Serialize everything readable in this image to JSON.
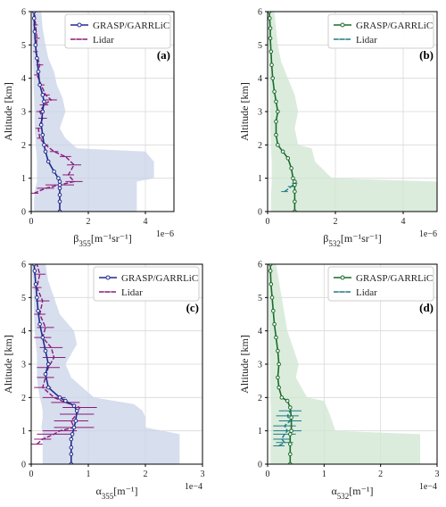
{
  "chart_data": [
    {
      "type": "line",
      "panel_label": "(a)",
      "xlabel": "β355[m⁻¹sr⁻¹]",
      "ylabel": "Altitude [km]",
      "xlim": [
        0,
        5
      ],
      "ylim": [
        0,
        6
      ],
      "xticks": [
        "0",
        "2",
        "4"
      ],
      "yticks": [
        "0",
        "1",
        "2",
        "3",
        "4",
        "5",
        "6"
      ],
      "x_exponent": "1e−6",
      "grid": true,
      "legend_position": "top-right",
      "colors": {
        "model": "#1f2c8c",
        "lidar": "#8b1a7a",
        "band": "#c9d3e8"
      },
      "series": [
        {
          "name": "GRASP/GARRLiC",
          "style": "solid-circles",
          "x": [
            1.0,
            1.0,
            1.0,
            1.0,
            1.0,
            1.0,
            0.95,
            0.8,
            0.6,
            0.5,
            0.45,
            0.4,
            0.35,
            0.4,
            0.45,
            0.4,
            0.3,
            0.25,
            0.2,
            0.15,
            0.12,
            0.1,
            0.1
          ],
          "y": [
            0.0,
            0.3,
            0.5,
            0.7,
            0.8,
            0.9,
            1.0,
            1.2,
            1.5,
            1.8,
            2.0,
            2.3,
            2.6,
            3.0,
            3.3,
            3.5,
            3.8,
            4.2,
            4.6,
            5.0,
            5.4,
            5.8,
            6.0
          ]
        },
        {
          "name": "Lidar",
          "style": "dashed-errorbars",
          "x": [
            0.1,
            0.5,
            1.0,
            1.5,
            1.3,
            1.5,
            1.2,
            0.8,
            0.5,
            0.3,
            0.25,
            0.4,
            0.3,
            0.45,
            0.7,
            0.5,
            0.35,
            0.2,
            0.3,
            0.15,
            0.2,
            0.15,
            0.12
          ],
          "y": [
            0.55,
            0.7,
            0.8,
            0.9,
            1.1,
            1.4,
            1.65,
            1.8,
            2.0,
            2.2,
            2.5,
            2.8,
            3.0,
            3.2,
            3.35,
            3.5,
            3.8,
            4.1,
            4.4,
            4.8,
            5.2,
            5.6,
            6.0
          ],
          "xerr": [
            0.15,
            0.3,
            0.5,
            0.3,
            0.2,
            0.25,
            0.2,
            0.15,
            0.1,
            0.1,
            0.1,
            0.15,
            0.12,
            0.15,
            0.2,
            0.15,
            0.12,
            0.1,
            0.12,
            0.08,
            0.1,
            0.08,
            0.06
          ]
        },
        {
          "name": "uncertainty band",
          "role": "band",
          "y": [
            0.0,
            0.3,
            0.6,
            0.9,
            1.0,
            1.2,
            1.5,
            1.8,
            1.9,
            2.2,
            2.5,
            3.0,
            3.4,
            3.8,
            4.2,
            4.6,
            5.0,
            5.5,
            6.0
          ],
          "x_low": [
            0.1,
            0.1,
            0.12,
            0.2,
            0.2,
            0.2,
            0.2,
            0.18,
            0.16,
            0.15,
            0.12,
            0.12,
            0.1,
            0.08,
            0.08,
            0.06,
            0.05,
            0.04,
            0.04
          ],
          "x_high": [
            3.7,
            3.7,
            3.7,
            3.7,
            4.3,
            4.3,
            4.3,
            4.0,
            1.6,
            1.2,
            1.0,
            1.2,
            1.1,
            0.9,
            0.8,
            0.6,
            0.5,
            0.4,
            0.35
          ]
        }
      ]
    },
    {
      "type": "line",
      "panel_label": "(b)",
      "xlabel": "β532[m⁻¹sr⁻¹]",
      "ylabel": "Altitude [km]",
      "xlim": [
        0,
        5
      ],
      "ylim": [
        0,
        6
      ],
      "xticks": [
        "0",
        "2",
        "4"
      ],
      "yticks": [
        "0",
        "1",
        "2",
        "3",
        "4",
        "5",
        "6"
      ],
      "x_exponent": "1e−6",
      "grid": true,
      "legend_position": "top-right",
      "colors": {
        "model": "#1b6b2a",
        "lidar": "#1f7a86",
        "band": "#cfe6d2"
      },
      "series": [
        {
          "name": "GRASP/GARRLiC",
          "style": "solid-circles",
          "x": [
            0.8,
            0.8,
            0.8,
            0.8,
            0.8,
            0.75,
            0.7,
            0.6,
            0.45,
            0.3,
            0.25,
            0.25,
            0.3,
            0.25,
            0.2,
            0.15,
            0.12,
            0.1,
            0.08,
            0.08,
            0.06,
            0.05
          ],
          "y": [
            0.0,
            0.3,
            0.6,
            0.8,
            0.9,
            1.0,
            1.3,
            1.6,
            1.8,
            2.0,
            2.3,
            2.7,
            3.0,
            3.3,
            3.6,
            4.0,
            4.4,
            4.8,
            5.2,
            5.5,
            5.8,
            6.0
          ]
        },
        {
          "name": "Lidar",
          "style": "dashed-errorbars",
          "x": [
            0.5,
            0.7,
            0.8
          ],
          "y": [
            0.6,
            0.75,
            0.85
          ],
          "xerr": [
            0.1,
            0.1,
            0.08
          ]
        },
        {
          "name": "uncertainty band",
          "role": "band",
          "y": [
            0.0,
            0.5,
            0.9,
            1.0,
            1.5,
            1.9,
            2.0,
            2.5,
            3.0,
            3.5,
            4.0,
            4.5,
            5.0,
            5.5,
            6.0
          ],
          "x_low": [
            0.1,
            0.1,
            0.12,
            0.12,
            0.12,
            0.1,
            0.1,
            0.08,
            0.08,
            0.06,
            0.05,
            0.04,
            0.03,
            0.03,
            0.02
          ],
          "x_high": [
            5.0,
            5.0,
            5.0,
            1.9,
            1.4,
            1.3,
            0.9,
            0.8,
            0.9,
            0.8,
            0.6,
            0.4,
            0.3,
            0.25,
            0.2
          ]
        }
      ]
    },
    {
      "type": "line",
      "panel_label": "(c)",
      "xlabel": "α355[m⁻¹]",
      "ylabel": "Altitude [km]",
      "xlim": [
        0,
        3
      ],
      "ylim": [
        0,
        6
      ],
      "xticks": [
        "0",
        "1",
        "2",
        "3"
      ],
      "yticks": [
        "0",
        "1",
        "2",
        "3",
        "4",
        "5",
        "6"
      ],
      "x_exponent": "1e−4",
      "grid": true,
      "legend_position": "top-right",
      "colors": {
        "model": "#1f2c8c",
        "lidar": "#8b1a7a",
        "band": "#c9d3e8"
      },
      "series": [
        {
          "name": "GRASP/GARRLiC",
          "style": "solid-circles",
          "x": [
            0.7,
            0.7,
            0.7,
            0.7,
            0.72,
            0.75,
            0.78,
            0.8,
            0.75,
            0.6,
            0.5,
            0.3,
            0.25,
            0.3,
            0.25,
            0.2,
            0.15,
            0.12,
            0.1,
            0.08,
            0.06,
            0.05
          ],
          "y": [
            0.0,
            0.3,
            0.5,
            0.75,
            0.9,
            1.1,
            1.3,
            1.6,
            1.75,
            1.9,
            2.0,
            2.3,
            2.7,
            3.0,
            3.4,
            3.8,
            4.2,
            4.6,
            5.0,
            5.4,
            5.8,
            6.0
          ]
        },
        {
          "name": "Lidar",
          "style": "dashed-errorbars",
          "x": [
            0.1,
            0.2,
            0.4,
            0.5,
            0.75,
            0.7,
            0.8,
            0.85,
            0.6,
            0.4,
            0.2,
            0.25,
            0.3,
            0.4,
            0.35,
            0.2,
            0.25,
            0.15,
            0.2,
            0.1,
            0.15,
            0.1
          ],
          "y": [
            0.6,
            0.75,
            0.9,
            1.0,
            1.1,
            1.3,
            1.5,
            1.7,
            1.85,
            2.0,
            2.3,
            2.6,
            2.9,
            3.2,
            3.5,
            3.8,
            4.1,
            4.5,
            4.9,
            5.3,
            5.7,
            6.0
          ],
          "xerr": [
            0.1,
            0.15,
            0.3,
            0.3,
            0.35,
            0.3,
            0.3,
            0.3,
            0.25,
            0.2,
            0.15,
            0.15,
            0.2,
            0.2,
            0.2,
            0.15,
            0.15,
            0.1,
            0.12,
            0.08,
            0.1,
            0.08
          ]
        },
        {
          "name": "uncertainty band",
          "role": "band",
          "y": [
            0.0,
            0.5,
            0.9,
            1.1,
            1.4,
            1.6,
            1.8,
            2.0,
            2.3,
            2.6,
            3.0,
            3.3,
            3.6,
            4.0,
            4.5,
            5.0,
            5.5,
            6.0
          ],
          "x_low": [
            0.2,
            0.2,
            0.2,
            0.18,
            0.2,
            0.2,
            0.18,
            0.15,
            0.12,
            0.1,
            0.1,
            0.1,
            0.08,
            0.06,
            0.05,
            0.04,
            0.03,
            0.02
          ],
          "x_high": [
            2.6,
            2.6,
            2.6,
            2.0,
            2.0,
            1.95,
            1.8,
            1.1,
            0.9,
            0.7,
            0.6,
            0.7,
            0.8,
            0.75,
            0.5,
            0.4,
            0.3,
            0.25
          ]
        }
      ]
    },
    {
      "type": "line",
      "panel_label": "(d)",
      "xlabel": "α532[m⁻¹]",
      "ylabel": "Altitude [km]",
      "xlim": [
        0,
        3
      ],
      "ylim": [
        0,
        6
      ],
      "xticks": [
        "0",
        "1",
        "2",
        "3"
      ],
      "yticks": [
        "0",
        "1",
        "2",
        "3",
        "4",
        "5",
        "6"
      ],
      "x_exponent": "1e−4",
      "grid": true,
      "legend_position": "top-right",
      "colors": {
        "model": "#1b6b2a",
        "lidar": "#1f7a86",
        "band": "#cfe6d2"
      },
      "series": [
        {
          "name": "GRASP/GARRLiC",
          "style": "solid-circles",
          "x": [
            0.4,
            0.4,
            0.4,
            0.4,
            0.42,
            0.42,
            0.4,
            0.35,
            0.25,
            0.2,
            0.18,
            0.2,
            0.18,
            0.15,
            0.12,
            0.1,
            0.08,
            0.06,
            0.05,
            0.05
          ],
          "y": [
            0.0,
            0.3,
            0.6,
            0.9,
            1.0,
            1.4,
            1.7,
            1.9,
            2.0,
            2.3,
            2.6,
            3.0,
            3.4,
            3.8,
            4.2,
            4.6,
            5.0,
            5.4,
            5.8,
            6.0
          ]
        },
        {
          "name": "Lidar",
          "style": "dashed-errorbars",
          "x": [
            0.2,
            0.3,
            0.25,
            0.3,
            0.35,
            0.3,
            0.4,
            0.35,
            0.4
          ],
          "y": [
            0.55,
            0.65,
            0.75,
            0.9,
            1.0,
            1.15,
            1.3,
            1.45,
            1.6
          ],
          "xerr": [
            0.1,
            0.15,
            0.15,
            0.2,
            0.25,
            0.2,
            0.2,
            0.2,
            0.2
          ]
        },
        {
          "name": "uncertainty band",
          "role": "band",
          "y": [
            0.0,
            0.5,
            0.9,
            1.0,
            1.5,
            1.9,
            2.0,
            2.3,
            2.6,
            3.0,
            3.5,
            4.0,
            4.5,
            5.0,
            5.5,
            6.0
          ],
          "x_low": [
            0.05,
            0.05,
            0.06,
            0.06,
            0.06,
            0.05,
            0.05,
            0.05,
            0.04,
            0.04,
            0.03,
            0.03,
            0.02,
            0.02,
            0.02,
            0.01
          ],
          "x_high": [
            2.7,
            2.7,
            2.7,
            1.2,
            1.1,
            1.0,
            0.7,
            0.6,
            0.5,
            0.55,
            0.45,
            0.35,
            0.3,
            0.25,
            0.2,
            0.15
          ]
        }
      ]
    }
  ]
}
